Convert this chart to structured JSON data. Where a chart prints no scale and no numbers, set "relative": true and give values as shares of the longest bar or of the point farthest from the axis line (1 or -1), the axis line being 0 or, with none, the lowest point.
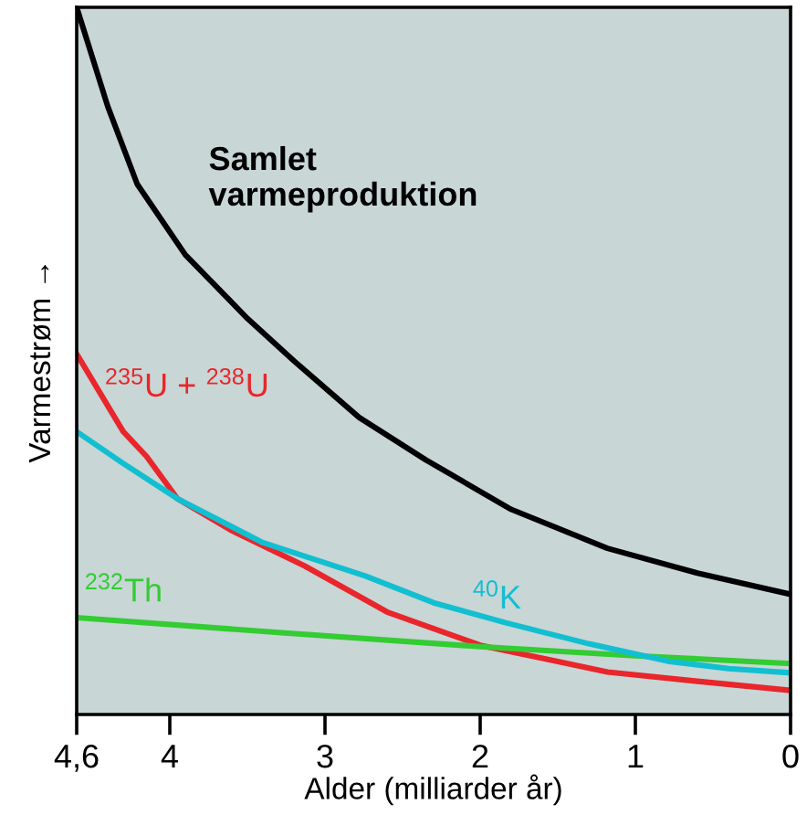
{
  "chart_data": {
    "type": "line",
    "relative": true,
    "xlabel": "Alder (milliarder år)",
    "ylabel": "Varmestrøm →",
    "xlim": [
      4.6,
      0
    ],
    "xticks": [
      {
        "value": 4.6,
        "label": "4,6"
      },
      4,
      3,
      2,
      1,
      0
    ],
    "grid": false,
    "legend": false,
    "marker": "none",
    "line_style": "solid",
    "series": [
      {
        "name": "Samlet\nvarmeproduktion",
        "color": "#000000",
        "x": [
          4.6,
          4.4,
          4.21,
          3.9,
          3.5,
          3.2,
          2.78,
          2.35,
          1.8,
          1.18,
          0.6,
          0
        ],
        "values": [
          1.0,
          0.86,
          0.75,
          0.65,
          0.56,
          0.5,
          0.42,
          0.36,
          0.29,
          0.235,
          0.2,
          0.17
        ]
      },
      {
        "name": "$^{235}$U + $^{238}$U",
        "color": "#e8262b",
        "x": [
          4.6,
          4.45,
          4.3,
          4.15,
          3.95,
          3.6,
          3.13,
          2.6,
          2.0,
          1.5,
          1.18,
          0.6,
          0
        ],
        "values": [
          0.51,
          0.455,
          0.4,
          0.365,
          0.305,
          0.26,
          0.21,
          0.145,
          0.098,
          0.075,
          0.06,
          0.047,
          0.034
        ]
      },
      {
        "name": "$^{232}$Th",
        "color": "#33cc33",
        "x": [
          4.6,
          3.3,
          2.0,
          1.0,
          0
        ],
        "values": [
          0.137,
          0.116,
          0.096,
          0.083,
          0.072
        ]
      },
      {
        "name": "$^{40}$K",
        "color": "#12bfd0",
        "x": [
          4.6,
          4.3,
          3.95,
          3.4,
          2.74,
          2.3,
          1.84,
          1.3,
          0.78,
          0.4,
          0
        ],
        "values": [
          0.4,
          0.355,
          0.305,
          0.243,
          0.196,
          0.158,
          0.13,
          0.1,
          0.075,
          0.065,
          0.059
        ]
      }
    ]
  }
}
